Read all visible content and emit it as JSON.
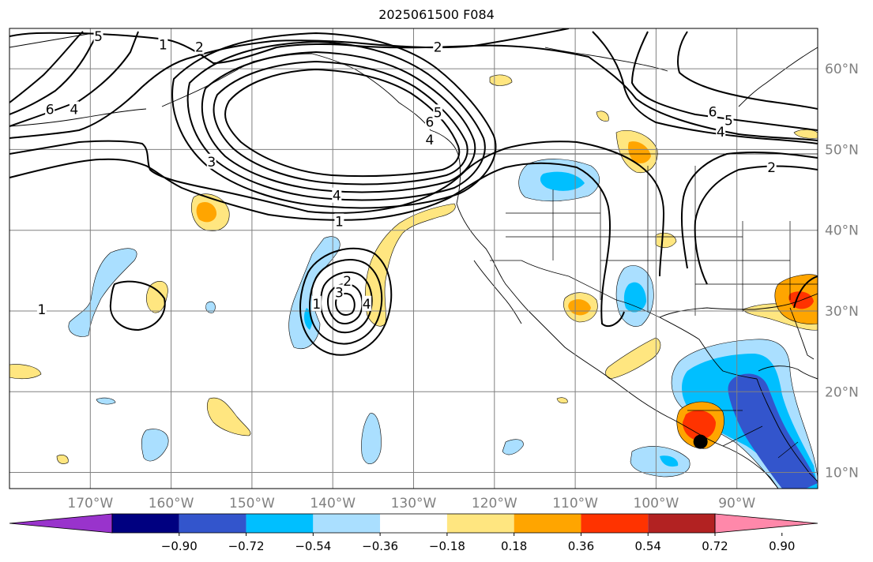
{
  "title": "2025061500 F084",
  "map": {
    "lon_range": [
      -180,
      -80
    ],
    "lat_range": [
      8,
      65
    ],
    "lon_ticks": [
      "170°W",
      "160°W",
      "150°W",
      "140°W",
      "130°W",
      "120°W",
      "110°W",
      "100°W",
      "90°W"
    ],
    "lat_ticks": [
      "60°N",
      "50°N",
      "40°N",
      "30°N",
      "20°N",
      "10°N"
    ],
    "grid": true,
    "contour_color": "#000000",
    "marker": {
      "lon": -94.5,
      "lat": 13.8,
      "color": "#000000"
    }
  },
  "contour_labels": [
    {
      "text": "1",
      "lon": -161,
      "lat": 63
    },
    {
      "text": "2",
      "lon": -156.5,
      "lat": 62.7
    },
    {
      "text": "5",
      "lon": -169,
      "lat": 64
    },
    {
      "text": "6",
      "lon": -175,
      "lat": 55
    },
    {
      "text": "4",
      "lon": -172,
      "lat": 55
    },
    {
      "text": "3",
      "lon": -155,
      "lat": 48.5
    },
    {
      "text": "2",
      "lon": -127,
      "lat": 62.7
    },
    {
      "text": "5",
      "lon": -127,
      "lat": 54.6
    },
    {
      "text": "6",
      "lon": -128,
      "lat": 53.4
    },
    {
      "text": "4",
      "lon": -128,
      "lat": 51.2
    },
    {
      "text": "4",
      "lon": -139.5,
      "lat": 44.3
    },
    {
      "text": "1",
      "lon": -139.2,
      "lat": 41.1
    },
    {
      "text": "6",
      "lon": -93,
      "lat": 54.7
    },
    {
      "text": "5",
      "lon": -91,
      "lat": 53.6
    },
    {
      "text": "4",
      "lon": -92,
      "lat": 52.2
    },
    {
      "text": "2",
      "lon": -85.7,
      "lat": 47.8
    },
    {
      "text": "1",
      "lon": -176,
      "lat": 30.2
    },
    {
      "text": "1",
      "lon": -142,
      "lat": 30.9
    },
    {
      "text": "2",
      "lon": -138.2,
      "lat": 33.7
    },
    {
      "text": "3",
      "lon": -139.2,
      "lat": 32.3
    },
    {
      "text": "4",
      "lon": -135.8,
      "lat": 30.9
    }
  ],
  "colorbar": {
    "ticks": [
      "−0.90",
      "−0.72",
      "−0.54",
      "−0.36",
      "−0.18",
      "0.18",
      "0.36",
      "0.54",
      "0.72",
      "0.90"
    ],
    "colors": [
      "#9933cc",
      "#000080",
      "#3355cc",
      "#00bfff",
      "#aadfff",
      "#ffffff",
      "#ffe680",
      "#ffa500",
      "#ff3300",
      "#b22222",
      "#ff88aa"
    ],
    "extend": "both"
  }
}
